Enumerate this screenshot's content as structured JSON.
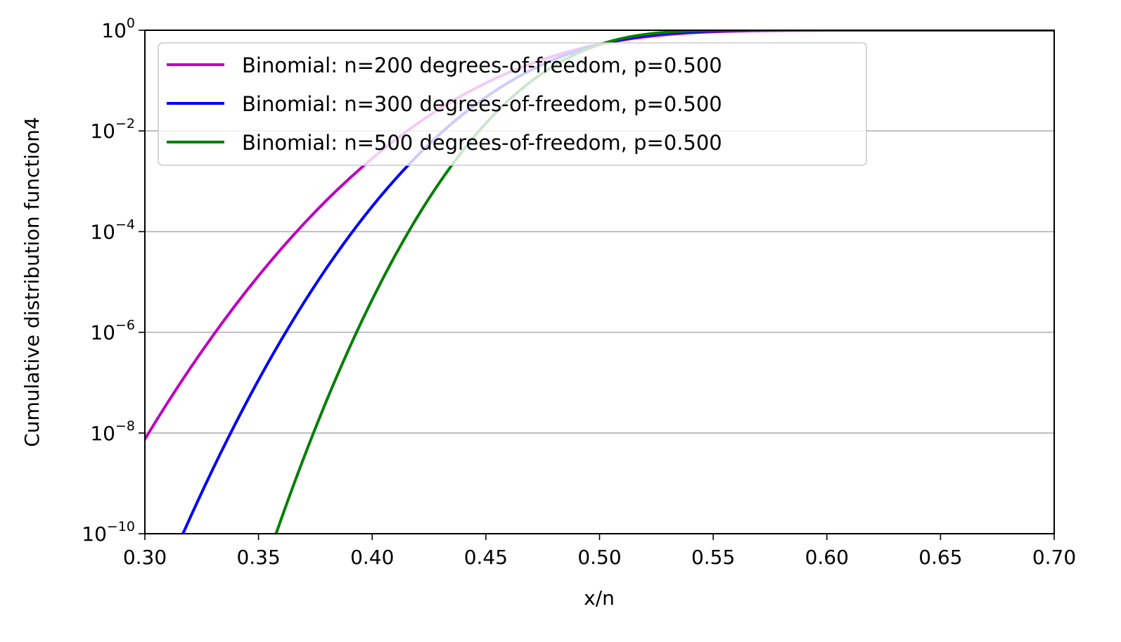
{
  "chart_data": {
    "type": "line",
    "title": "",
    "xlabel": "x/n",
    "ylabel": "Cumulative distribution function4",
    "xlim": [
      0.3,
      0.7
    ],
    "ylim": [
      1e-10,
      1
    ],
    "yscale": "log",
    "grid": "horizontal",
    "legend_position": "upper-left",
    "x_ticks": [
      {
        "value": 0.3,
        "label": "0.30"
      },
      {
        "value": 0.35,
        "label": "0.35"
      },
      {
        "value": 0.4,
        "label": "0.40"
      },
      {
        "value": 0.45,
        "label": "0.45"
      },
      {
        "value": 0.5,
        "label": "0.50"
      },
      {
        "value": 0.55,
        "label": "0.55"
      },
      {
        "value": 0.6,
        "label": "0.60"
      },
      {
        "value": 0.65,
        "label": "0.65"
      },
      {
        "value": 0.7,
        "label": "0.70"
      }
    ],
    "y_ticks": [
      {
        "value": 1e-10,
        "base": "10",
        "exponent": "−10"
      },
      {
        "value": 1e-08,
        "base": "10",
        "exponent": "−8"
      },
      {
        "value": 1e-06,
        "base": "10",
        "exponent": "−6"
      },
      {
        "value": 0.0001,
        "base": "10",
        "exponent": "−4"
      },
      {
        "value": 0.01,
        "base": "10",
        "exponent": "−2"
      },
      {
        "value": 1,
        "base": "10",
        "exponent": "0"
      }
    ],
    "series": [
      {
        "name": "Binomial: n=200 degrees-of-freedom, p=0.500",
        "color": "#bf00bf",
        "n": 200,
        "p": 0.5
      },
      {
        "name": "Binomial: n=300 degrees-of-freedom, p=0.500",
        "color": "#0000ff",
        "n": 300,
        "p": 0.5
      },
      {
        "name": "Binomial: n=500 degrees-of-freedom, p=0.500",
        "color": "#008000",
        "n": 500,
        "p": 0.5
      }
    ]
  }
}
